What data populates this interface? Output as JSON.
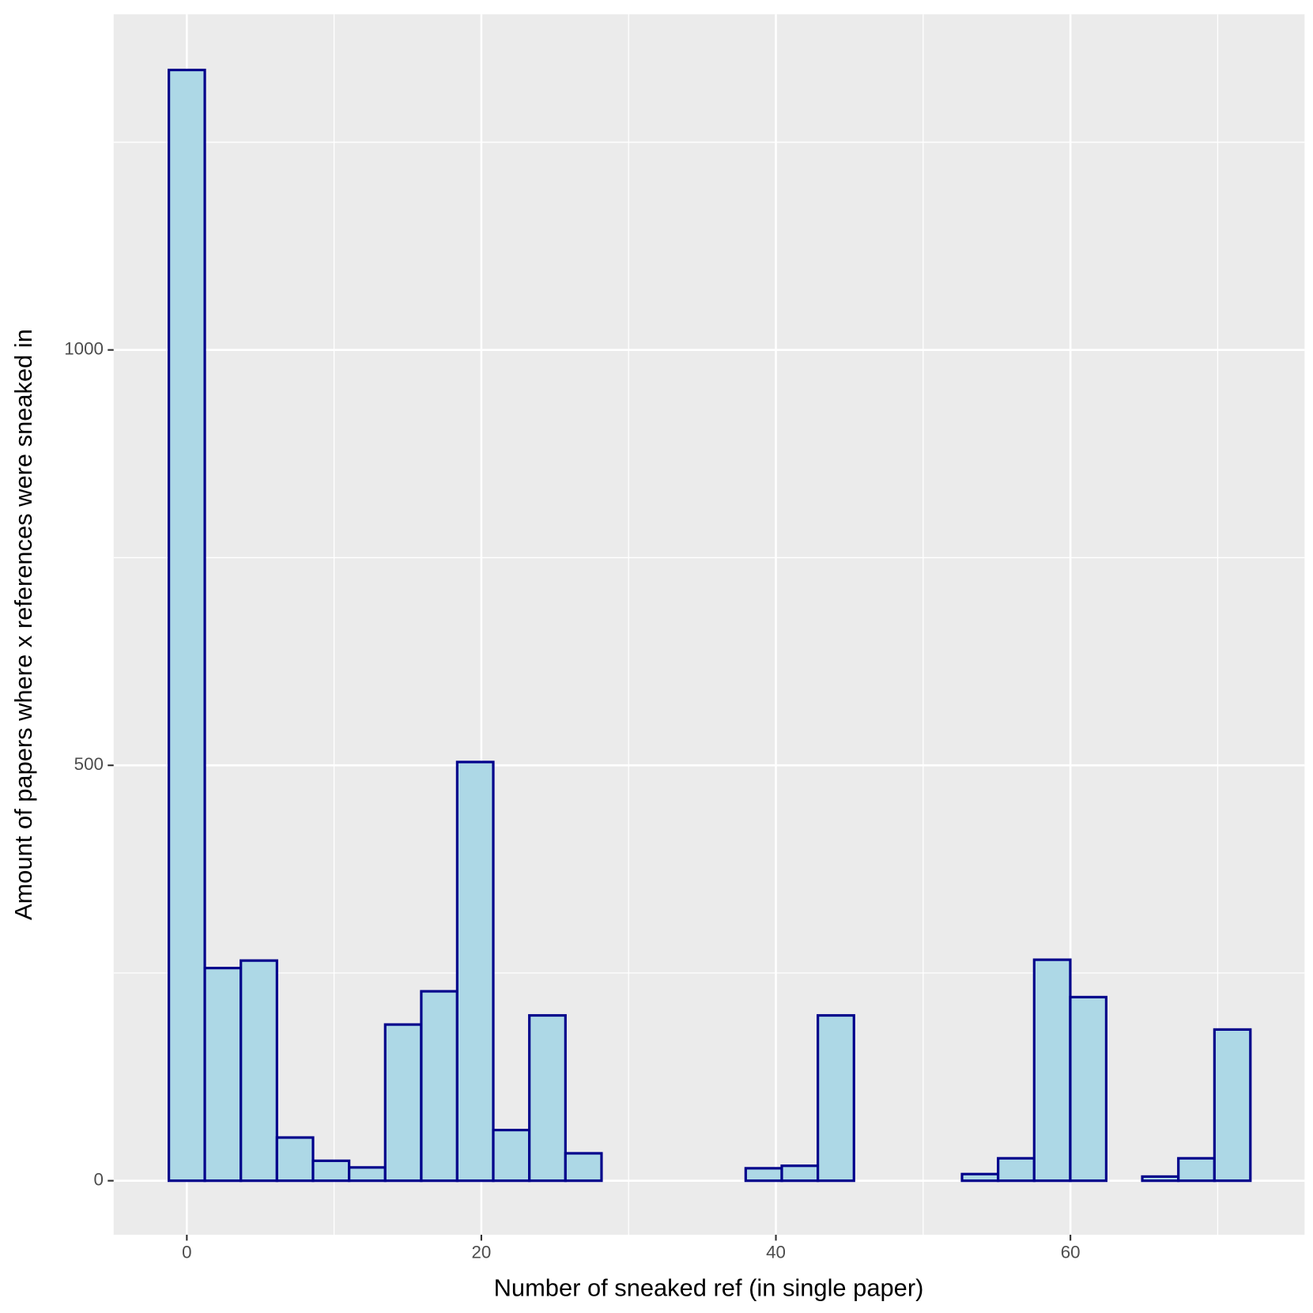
{
  "chart_data": {
    "type": "histogram",
    "x_label": "Number of sneaked ref (in single paper)",
    "y_label": "Amount of papers where x references were sneaked in",
    "bins": [
      -1.22,
      1.22,
      3.67,
      6.12,
      8.57,
      11.02,
      13.47,
      15.92,
      18.36,
      20.81,
      23.26,
      25.71,
      28.16,
      30.61,
      33.05,
      35.5,
      37.95,
      40.4,
      42.85,
      45.3,
      47.74,
      50.19,
      52.64,
      55.09,
      57.54,
      59.99,
      62.43,
      64.88,
      67.33,
      69.78,
      72.22
    ],
    "values": [
      1337,
      256,
      265,
      52,
      24,
      16,
      188,
      228,
      504,
      61,
      199,
      33,
      0,
      0,
      0,
      0,
      15,
      18,
      199,
      0,
      0,
      0,
      8,
      27,
      266,
      221,
      0,
      5,
      27,
      182
    ],
    "color": "#add8e6",
    "edge_color": "#00008b",
    "xlim": [
      -4.97,
      75.9
    ],
    "ylim": [
      -65,
      1404
    ],
    "xticks": [
      0,
      20,
      40,
      60
    ],
    "yticks": [
      0,
      500,
      1000
    ],
    "xminor": [
      10,
      30,
      50,
      70
    ],
    "yminor": [
      250,
      750,
      1250
    ],
    "grid": true
  }
}
